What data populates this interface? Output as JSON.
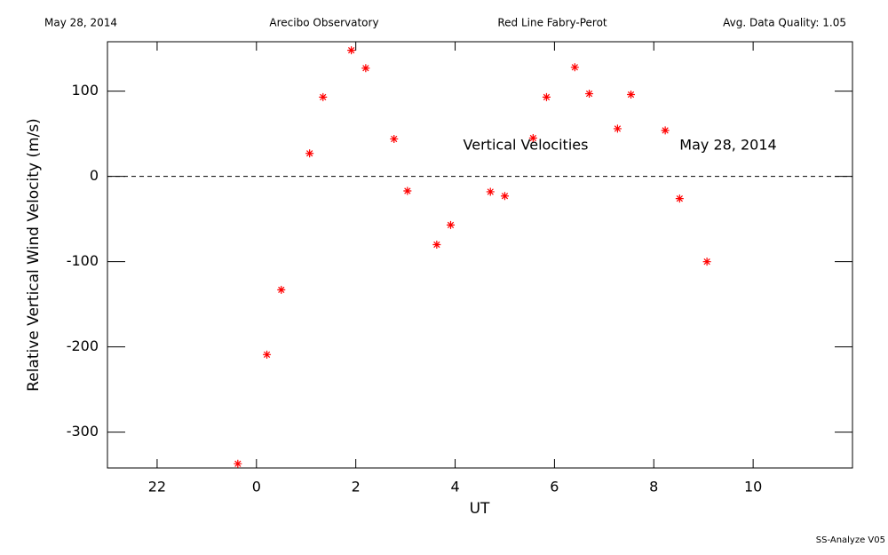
{
  "chart_data": {
    "type": "scatter",
    "header": [
      "May 28, 2014",
      "Arecibo Observatory",
      "Red Line Fabry-Perot",
      "Avg. Data Quality: 1.05"
    ],
    "annotations": [
      "Vertical Velocities",
      "May 28, 2014"
    ],
    "footer": "SS-Analyze V05",
    "xlabel": "UT",
    "ylabel": "Relative Vertical Wind Velocity (m/s)",
    "xlim": [
      -3,
      12
    ],
    "ylim": [
      -342,
      158
    ],
    "xticks": [
      {
        "value": -2,
        "label": "22"
      },
      0,
      2,
      4,
      6,
      8,
      10
    ],
    "yticks": [
      -300,
      -200,
      -100,
      0,
      100
    ],
    "hline": 0,
    "color": "#ff0000",
    "x": [
      -0.375,
      0.21,
      0.5,
      1.07,
      1.34,
      1.91,
      2.2,
      2.77,
      3.04,
      3.63,
      3.91,
      4.71,
      5.0,
      5.57,
      5.84,
      6.41,
      6.7,
      7.27,
      7.54,
      8.23,
      8.52,
      9.07
    ],
    "values": [
      -337,
      -209,
      -133,
      27,
      93,
      148,
      127,
      44,
      -17,
      -80,
      -57,
      -18,
      -23,
      45,
      93,
      128,
      97,
      56,
      96,
      54,
      -26,
      -100
    ]
  }
}
